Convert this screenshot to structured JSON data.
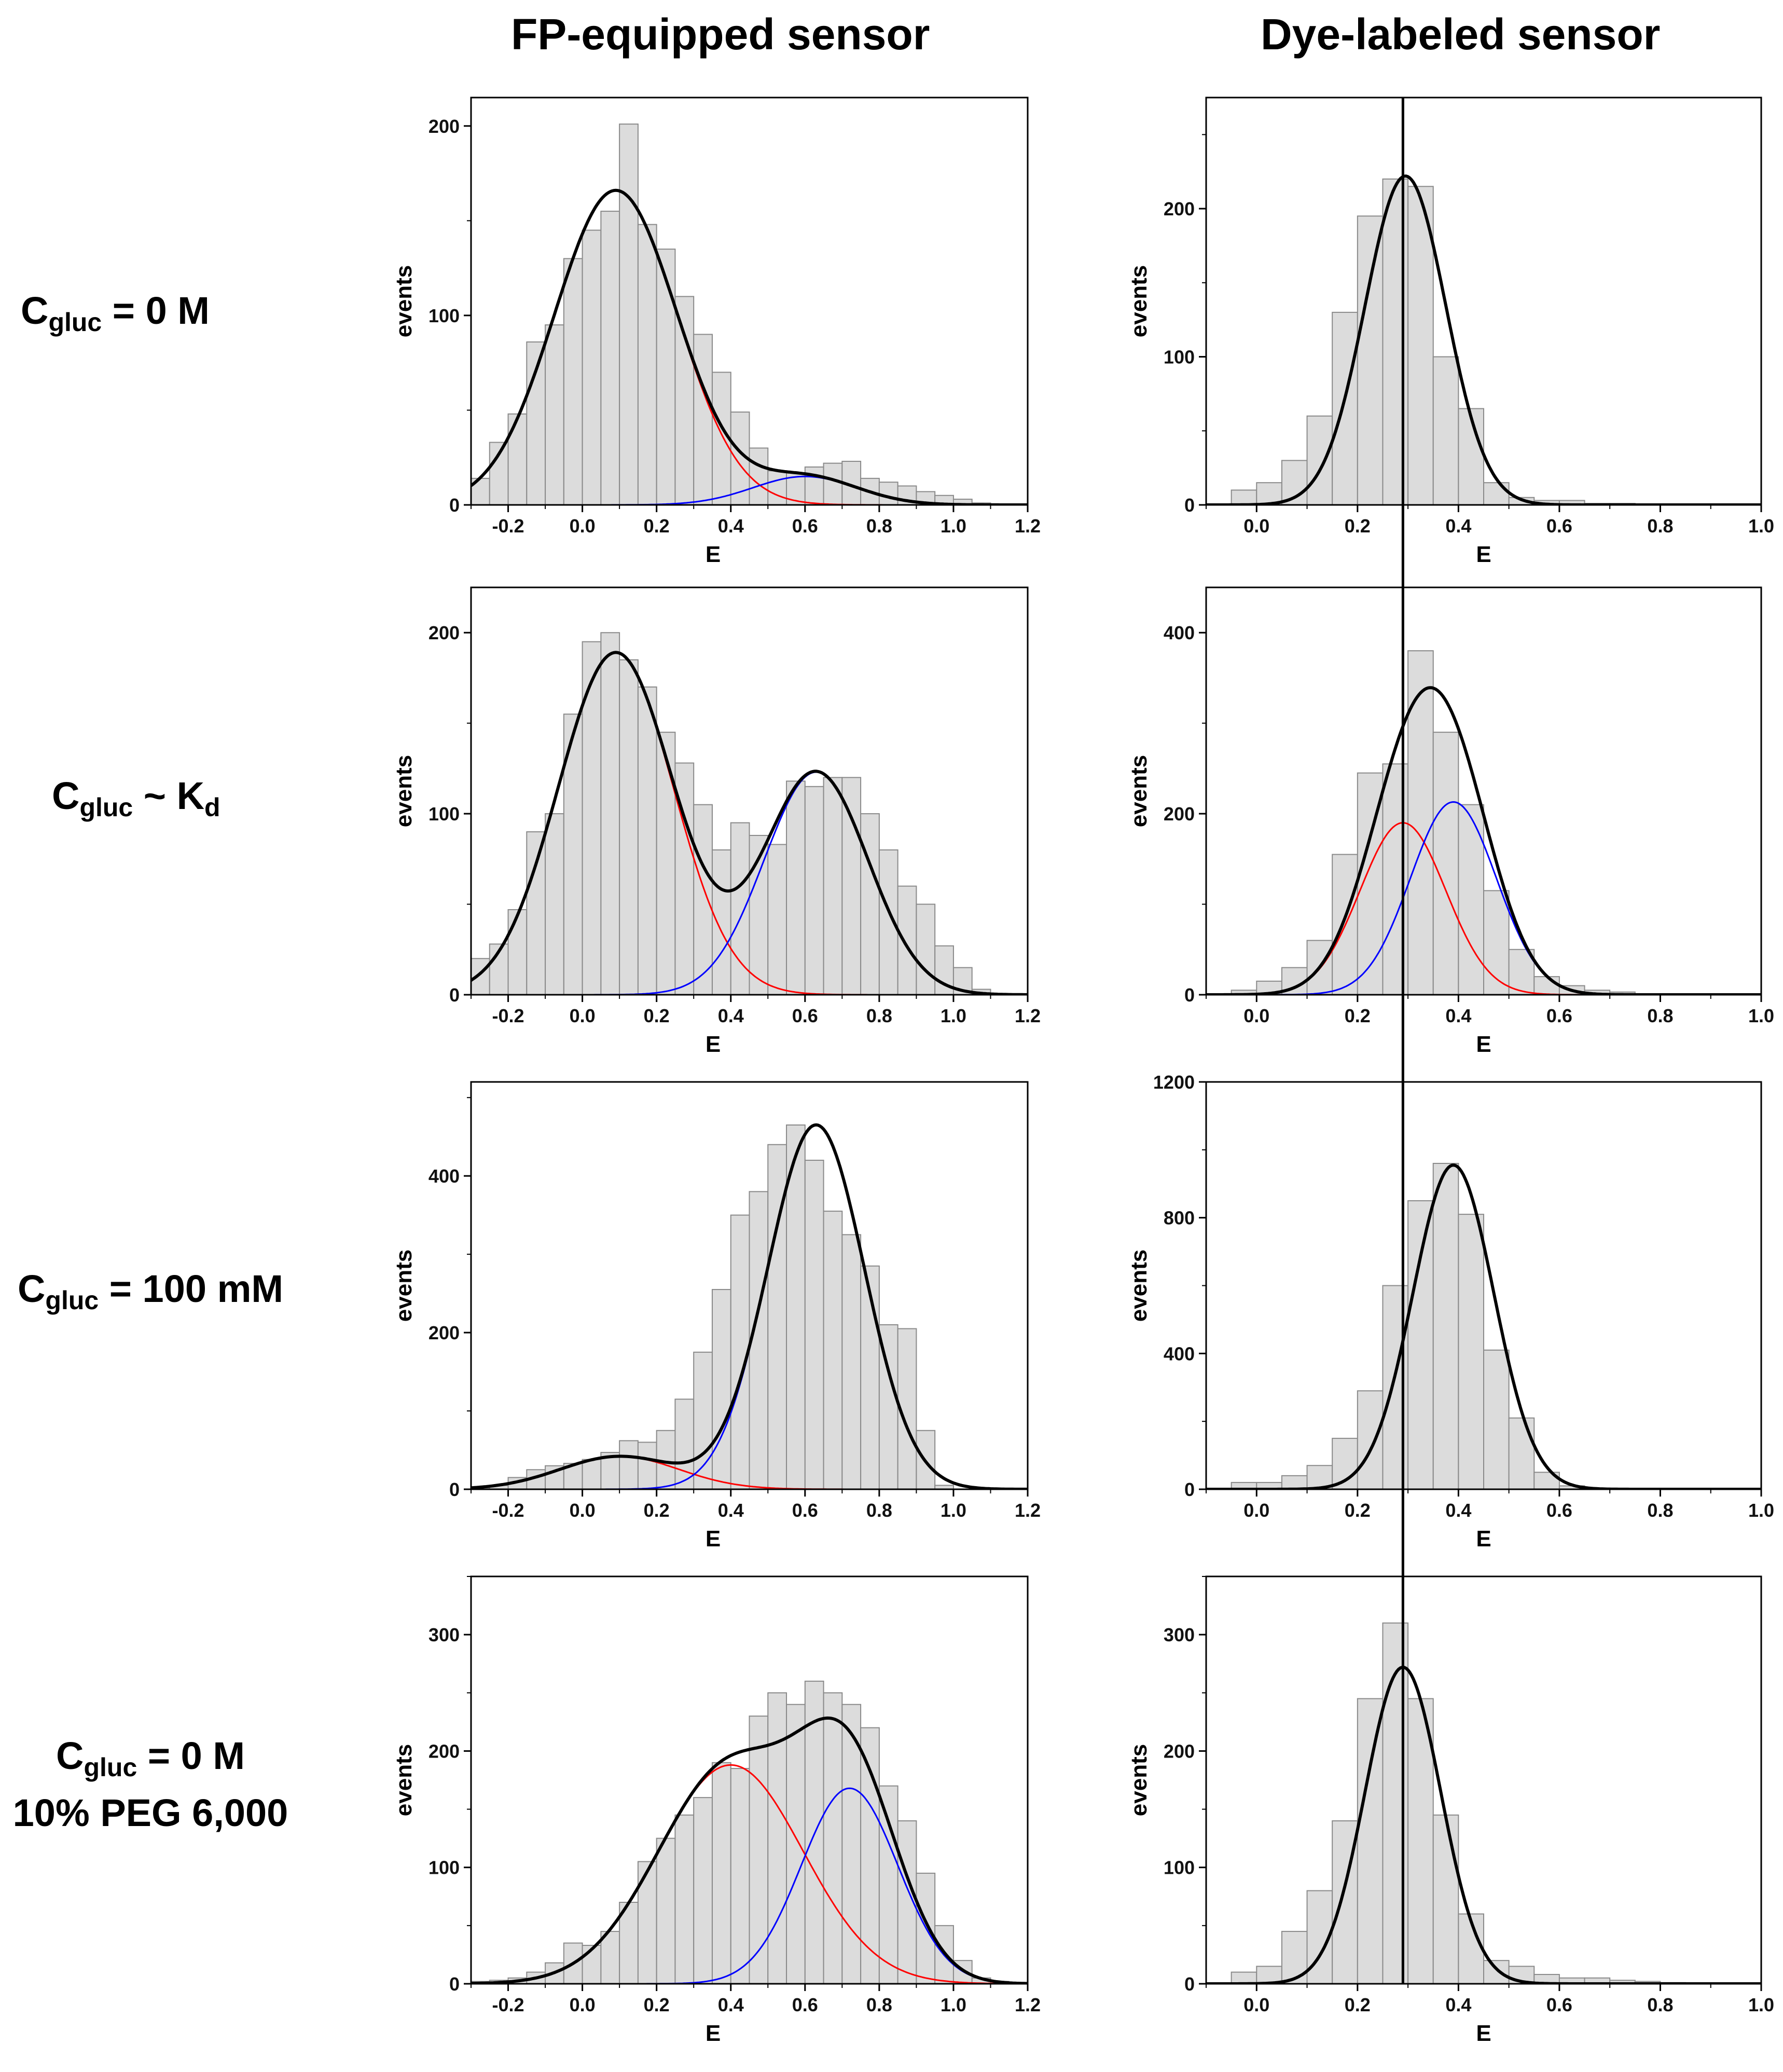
{
  "titles": {
    "left": "FP-equipped sensor",
    "right": "Dye-labeled sensor"
  },
  "rows": [
    {
      "main": "C",
      "sub": "gluc",
      "rest": " = 0 M",
      "line2": ""
    },
    {
      "main": "C",
      "sub": "gluc",
      "rest": " ~ K",
      "sub2": "d",
      "line2": ""
    },
    {
      "main": "C",
      "sub": "gluc",
      "rest": " = 100 mM",
      "line2": ""
    },
    {
      "main": "C",
      "sub": "gluc",
      "rest": " = 0 M",
      "line2": "10% PEG 6,000"
    }
  ],
  "colors": {
    "bars": "#dcdcdc",
    "bar_edge": "#8a8a8a",
    "total": "#000000",
    "low": "#ff0000",
    "high": "#0000ff"
  },
  "reference_line_E": 0.29,
  "chart_data": [
    {
      "id": "fp-0M",
      "type": "histogram",
      "xlabel": "E",
      "ylabel": "events",
      "xlim": [
        -0.3,
        1.2
      ],
      "ylim": [
        0,
        215
      ],
      "xticks": [
        -0.2,
        0.0,
        0.2,
        0.4,
        0.6,
        0.8,
        1.0,
        1.2
      ],
      "yticks": [
        0,
        100,
        200
      ],
      "bin_start": -0.3,
      "bin_width": 0.05,
      "values": [
        14,
        33,
        48,
        86,
        95,
        130,
        145,
        155,
        201,
        148,
        135,
        110,
        90,
        70,
        49,
        30,
        18,
        17,
        20,
        22,
        23,
        14,
        12,
        10,
        7,
        5,
        3,
        1,
        0,
        0
      ],
      "fits": [
        {
          "name": "low",
          "A": 166,
          "mu": 0.09,
          "sigma": 0.165
        },
        {
          "name": "high",
          "A": 15,
          "mu": 0.6,
          "sigma": 0.14
        }
      ]
    },
    {
      "id": "fp-kd",
      "type": "histogram",
      "xlabel": "E",
      "ylabel": "events",
      "xlim": [
        -0.3,
        1.2
      ],
      "ylim": [
        0,
        225
      ],
      "xticks": [
        -0.2,
        0.0,
        0.2,
        0.4,
        0.6,
        0.8,
        1.0,
        1.2
      ],
      "yticks": [
        0,
        100,
        200
      ],
      "bin_start": -0.3,
      "bin_width": 0.05,
      "values": [
        20,
        28,
        47,
        90,
        100,
        155,
        195,
        200,
        185,
        170,
        145,
        128,
        105,
        80,
        95,
        88,
        83,
        118,
        115,
        120,
        120,
        100,
        80,
        60,
        50,
        27,
        15,
        3,
        0,
        0
      ],
      "fits": [
        {
          "name": "low",
          "A": 189,
          "mu": 0.09,
          "sigma": 0.155
        },
        {
          "name": "high",
          "A": 123,
          "mu": 0.63,
          "sigma": 0.14
        }
      ]
    },
    {
      "id": "fp-100mM",
      "type": "histogram",
      "xlabel": "E",
      "ylabel": "events",
      "xlim": [
        -0.3,
        1.2
      ],
      "ylim": [
        0,
        520
      ],
      "xticks": [
        -0.2,
        0.0,
        0.2,
        0.4,
        0.6,
        0.8,
        1.0,
        1.2
      ],
      "yticks": [
        0,
        200,
        400
      ],
      "bin_start": -0.3,
      "bin_width": 0.05,
      "values": [
        2,
        5,
        15,
        25,
        30,
        33,
        38,
        47,
        62,
        60,
        75,
        115,
        175,
        255,
        350,
        380,
        440,
        465,
        420,
        355,
        325,
        285,
        210,
        205,
        75,
        5,
        0,
        0,
        0,
        0
      ],
      "fits": [
        {
          "name": "low",
          "A": 42,
          "mu": 0.1,
          "sigma": 0.16
        },
        {
          "name": "high",
          "A": 465,
          "mu": 0.63,
          "sigma": 0.13
        }
      ]
    },
    {
      "id": "fp-peg",
      "type": "histogram",
      "xlabel": "E",
      "ylabel": "events",
      "xlim": [
        -0.3,
        1.2
      ],
      "ylim": [
        0,
        350
      ],
      "xticks": [
        -0.2,
        0.0,
        0.2,
        0.4,
        0.6,
        0.8,
        1.0,
        1.2
      ],
      "yticks": [
        0,
        100,
        200,
        300
      ],
      "bin_start": -0.3,
      "bin_width": 0.05,
      "values": [
        2,
        3,
        5,
        10,
        18,
        35,
        33,
        45,
        70,
        105,
        125,
        145,
        160,
        190,
        185,
        230,
        250,
        240,
        260,
        250,
        240,
        220,
        170,
        140,
        95,
        50,
        20,
        5,
        2,
        0
      ],
      "fits": [
        {
          "name": "low",
          "A": 188,
          "mu": 0.4,
          "sigma": 0.195
        },
        {
          "name": "high",
          "A": 168,
          "mu": 0.72,
          "sigma": 0.13
        }
      ]
    },
    {
      "id": "dye-0M",
      "type": "histogram",
      "xlabel": "E",
      "ylabel": "events",
      "xlim": [
        -0.1,
        1.0
      ],
      "ylim": [
        0,
        275
      ],
      "xticks": [
        0.0,
        0.2,
        0.4,
        0.6,
        0.8,
        1.0
      ],
      "yticks": [
        0,
        100,
        200
      ],
      "bin_start": -0.05,
      "bin_width": 0.05,
      "values": [
        10,
        15,
        30,
        60,
        130,
        195,
        220,
        215,
        100,
        65,
        15,
        5,
        3,
        3,
        1,
        1,
        0,
        0,
        0,
        0,
        0
      ],
      "fits": [
        {
          "name": "total",
          "A": 222,
          "mu": 0.295,
          "sigma": 0.08
        }
      ]
    },
    {
      "id": "dye-kd",
      "type": "histogram",
      "xlabel": "E",
      "ylabel": "events",
      "xlim": [
        -0.1,
        1.0
      ],
      "ylim": [
        0,
        450
      ],
      "xticks": [
        0.0,
        0.2,
        0.4,
        0.6,
        0.8,
        1.0
      ],
      "yticks": [
        0,
        200,
        400
      ],
      "bin_start": -0.05,
      "bin_width": 0.05,
      "values": [
        5,
        15,
        30,
        60,
        155,
        245,
        255,
        380,
        290,
        210,
        115,
        50,
        20,
        10,
        5,
        3,
        1,
        0,
        0,
        0,
        0
      ],
      "fits": [
        {
          "name": "low",
          "A": 190,
          "mu": 0.29,
          "sigma": 0.085
        },
        {
          "name": "high",
          "A": 213,
          "mu": 0.39,
          "sigma": 0.085
        }
      ]
    },
    {
      "id": "dye-100mM",
      "type": "histogram",
      "xlabel": "E",
      "ylabel": "events",
      "xlim": [
        -0.1,
        1.0
      ],
      "ylim": [
        0,
        1200
      ],
      "xticks": [
        0.0,
        0.2,
        0.4,
        0.6,
        0.8,
        1.0
      ],
      "yticks": [
        0,
        400,
        800,
        1200
      ],
      "bin_start": -0.05,
      "bin_width": 0.05,
      "values": [
        20,
        20,
        40,
        70,
        150,
        290,
        600,
        850,
        960,
        810,
        410,
        210,
        50,
        10,
        3,
        2,
        1,
        0,
        0,
        0,
        0
      ],
      "fits": [
        {
          "name": "total",
          "A": 955,
          "mu": 0.39,
          "sigma": 0.08
        }
      ]
    },
    {
      "id": "dye-peg",
      "type": "histogram",
      "xlabel": "E",
      "ylabel": "events",
      "xlim": [
        -0.1,
        1.0
      ],
      "ylim": [
        0,
        350
      ],
      "xticks": [
        0.0,
        0.2,
        0.4,
        0.6,
        0.8,
        1.0
      ],
      "yticks": [
        0,
        100,
        200,
        300
      ],
      "bin_start": -0.05,
      "bin_width": 0.05,
      "values": [
        10,
        15,
        45,
        80,
        140,
        245,
        310,
        245,
        145,
        60,
        20,
        15,
        8,
        5,
        5,
        3,
        2,
        1,
        0,
        0,
        0
      ],
      "fits": [
        {
          "name": "total",
          "A": 272,
          "mu": 0.29,
          "sigma": 0.075
        }
      ]
    }
  ]
}
